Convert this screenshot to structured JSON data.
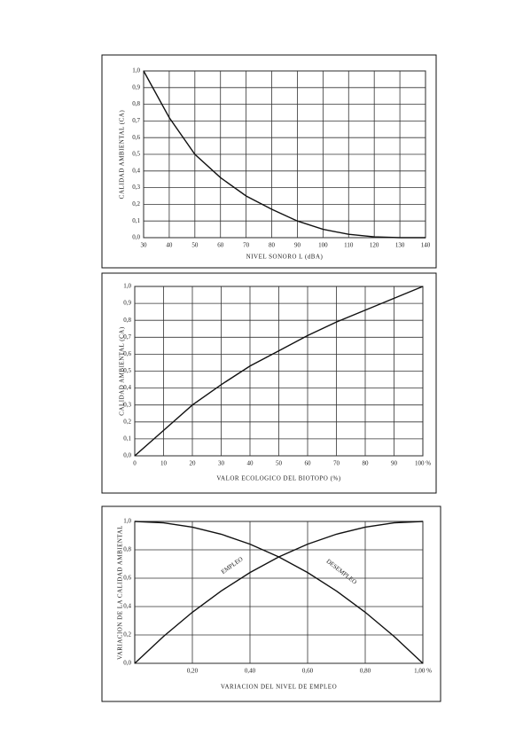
{
  "chart_data": [
    {
      "type": "line",
      "x_label": "NIVEL SONORO L (dBA)",
      "y_label": "CALIDAD AMBIENTAL (CA)",
      "x": [
        30,
        40,
        50,
        60,
        70,
        80,
        90,
        100,
        110,
        120,
        130,
        140
      ],
      "series": [
        {
          "color": "#111111",
          "values": [
            1.0,
            0.72,
            0.5,
            0.36,
            0.25,
            0.17,
            0.1,
            0.05,
            0.02,
            0.005,
            0.0,
            0.0
          ]
        }
      ],
      "xlim": [
        30,
        140
      ],
      "xticks": [
        30,
        40,
        50,
        60,
        70,
        80,
        90,
        100,
        110,
        120,
        130,
        140
      ],
      "ylim": [
        0,
        1
      ],
      "yticks": [
        {
          "value": 0,
          "label": "0,0"
        },
        {
          "value": 0.1,
          "label": "0,1"
        },
        {
          "value": 0.2,
          "label": "0,2"
        },
        {
          "value": 0.3,
          "label": "0,3"
        },
        {
          "value": 0.4,
          "label": "0,4"
        },
        {
          "value": 0.5,
          "label": "0,5"
        },
        {
          "value": 0.6,
          "label": "0,6"
        },
        {
          "value": 0.7,
          "label": "0,7"
        },
        {
          "value": 0.8,
          "label": "0,8"
        },
        {
          "value": 0.9,
          "label": "0,9"
        },
        {
          "value": 1.0,
          "label": "1,0"
        }
      ],
      "grid": true
    },
    {
      "type": "line",
      "x_label": "VALOR ECOLOGICO DEL BIOTOPO (%)",
      "y_label": "CALIDAD AMBIENTAL (CA)",
      "x": [
        0,
        10,
        20,
        30,
        40,
        50,
        60,
        70,
        80,
        90,
        100
      ],
      "series": [
        {
          "color": "#111111",
          "values": [
            0,
            0.15,
            0.3,
            0.42,
            0.53,
            0.62,
            0.71,
            0.79,
            0.86,
            0.93,
            1.0
          ]
        }
      ],
      "xlim": [
        0,
        100
      ],
      "xticks": [
        0,
        10,
        20,
        30,
        40,
        50,
        60,
        70,
        80,
        90,
        {
          "value": 100,
          "label": "100 %"
        }
      ],
      "ylim": [
        0,
        1
      ],
      "yticks": [
        {
          "value": 0,
          "label": "0,0"
        },
        {
          "value": 0.1,
          "label": "0,1"
        },
        {
          "value": 0.2,
          "label": "0,2"
        },
        {
          "value": 0.3,
          "label": "0,3"
        },
        {
          "value": 0.4,
          "label": "0,4"
        },
        {
          "value": 0.5,
          "label": "0,5"
        },
        {
          "value": 0.6,
          "label": "0,6"
        },
        {
          "value": 0.7,
          "label": "0,7"
        },
        {
          "value": 0.8,
          "label": "0,8"
        },
        {
          "value": 0.9,
          "label": "0,9"
        },
        {
          "value": 1.0,
          "label": "1,0"
        }
      ],
      "grid": true
    },
    {
      "type": "line",
      "x_label": "VARIACION DEL NIVEL DE EMPLEO",
      "y_label": "VARIACION DE LA CALIDAD AMBIENTAL",
      "x": [
        0,
        0.1,
        0.2,
        0.3,
        0.4,
        0.5,
        0.6,
        0.7,
        0.8,
        0.9,
        1.0
      ],
      "series": [
        {
          "name": "EMPLEO",
          "color": "#111111",
          "values": [
            0,
            0.19,
            0.36,
            0.51,
            0.64,
            0.75,
            0.84,
            0.91,
            0.96,
            0.99,
            1.0
          ]
        },
        {
          "name": "DESEMPLEO",
          "color": "#111111",
          "values": [
            1.0,
            0.99,
            0.96,
            0.91,
            0.84,
            0.75,
            0.64,
            0.51,
            0.36,
            0.19,
            0
          ]
        }
      ],
      "xlim": [
        0,
        1
      ],
      "xticks": [
        {
          "value": 0.2,
          "label": "0,20"
        },
        {
          "value": 0.4,
          "label": "0,40"
        },
        {
          "value": 0.6,
          "label": "0,60"
        },
        {
          "value": 0.8,
          "label": "0,80"
        },
        {
          "value": 1.0,
          "label": "1,00 %"
        }
      ],
      "ylim": [
        0,
        1
      ],
      "yticks": [
        {
          "value": 0,
          "label": "0,0"
        },
        {
          "value": 0.2,
          "label": "0,2"
        },
        {
          "value": 0.4,
          "label": "0,4"
        },
        {
          "value": 0.6,
          "label": "0,6"
        },
        {
          "value": 0.8,
          "label": "0,8"
        },
        {
          "value": 1.0,
          "label": "1,0"
        }
      ],
      "grid": true
    }
  ]
}
